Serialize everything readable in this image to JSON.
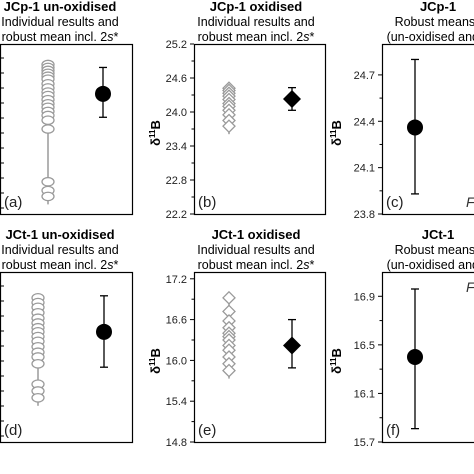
{
  "chart_data": [
    {
      "type": "scatter",
      "panel_label": "(a)",
      "title": "JCp-1 un-oxidised",
      "subtitle_lines": [
        "Individual results and",
        "robust mean incl. 2s*"
      ],
      "ylabel": "",
      "yticks": [],
      "ylim": [
        22.4,
        25.3
      ],
      "individual_results": [
        24.95,
        24.9,
        24.85,
        24.8,
        24.75,
        24.7,
        24.62,
        24.55,
        24.48,
        24.42,
        24.35,
        24.28,
        24.22,
        24.15,
        24.08,
        24.0,
        23.85,
        22.95,
        22.8,
        22.7
      ],
      "individual_marker": "open-circle",
      "robust_mean": {
        "value": 24.45,
        "err_low": 24.05,
        "err_high": 24.9,
        "marker": "filled-circle"
      }
    },
    {
      "type": "scatter",
      "panel_label": "(b)",
      "title": "JCp-1 oxidised",
      "subtitle_lines": [
        "Individual results and",
        "robust mean incl. 2s*"
      ],
      "ylabel": "δ11B",
      "yticks": [
        "22.2",
        "22.8",
        "23.4",
        "24.0",
        "24.6",
        "25.2"
      ],
      "ylim": [
        22.2,
        25.2
      ],
      "individual_results": [
        24.42,
        24.38,
        24.33,
        24.28,
        24.22,
        24.15,
        24.1,
        24.03,
        23.95,
        23.85,
        23.75
      ],
      "individual_marker": "open-diamond",
      "robust_mean": {
        "value": 24.23,
        "err_low": 24.03,
        "err_high": 24.43,
        "marker": "filled-diamond"
      }
    },
    {
      "type": "scatter",
      "panel_label": "(c)",
      "title": "JCp-1",
      "subtitle_lines": [
        "Robust means i",
        "(un-oxidised and o"
      ],
      "ylabel": "δ11B",
      "yticks": [
        "23.8",
        "24.1",
        "24.4",
        "24.7"
      ],
      "ylim": [
        23.8,
        24.9
      ],
      "corner_label": "F",
      "robust_mean": {
        "value": 24.36,
        "err_low": 23.93,
        "err_high": 24.8,
        "marker": "filled-circle"
      }
    },
    {
      "type": "scatter",
      "panel_label": "(d)",
      "title": "JCt-1 un-oxidised",
      "subtitle_lines": [
        "Individual results and",
        "robust mean incl. 2s*"
      ],
      "ylabel": "",
      "yticks": [],
      "ylim": [
        14.8,
        17.3
      ],
      "individual_results": [
        16.92,
        16.85,
        16.78,
        16.7,
        16.62,
        16.55,
        16.48,
        16.42,
        16.35,
        16.28,
        16.2,
        16.12,
        16.05,
        15.95,
        15.65,
        15.55,
        15.45
      ],
      "individual_marker": "open-circle",
      "robust_mean": {
        "value": 16.42,
        "err_low": 15.9,
        "err_high": 16.95,
        "marker": "filled-circle"
      }
    },
    {
      "type": "scatter",
      "panel_label": "(e)",
      "title": "JCt-1 oxidised",
      "subtitle_lines": [
        "Individual results and",
        "robust mean incl. 2s*"
      ],
      "ylabel": "δ11B",
      "yticks": [
        "14.8",
        "15.4",
        "16.0",
        "16.6",
        "17.2"
      ],
      "ylim": [
        14.8,
        17.3
      ],
      "individual_results": [
        16.92,
        16.72,
        16.58,
        16.48,
        16.4,
        16.35,
        16.3,
        16.22,
        16.15,
        16.05,
        15.95,
        15.85
      ],
      "individual_marker": "open-diamond",
      "robust_mean": {
        "value": 16.22,
        "err_low": 15.89,
        "err_high": 16.6,
        "marker": "filled-diamond"
      }
    },
    {
      "type": "scatter",
      "panel_label": "(f)",
      "title": "JCt-1",
      "subtitle_lines": [
        "Robust means i",
        "(un-oxidised and o"
      ],
      "ylabel": "δ11B",
      "yticks": [
        "15.7",
        "16.1",
        "16.5",
        "16.9"
      ],
      "ylim": [
        15.7,
        17.1
      ],
      "corner_label": "F",
      "robust_mean": {
        "value": 16.4,
        "err_low": 15.81,
        "err_high": 16.96,
        "marker": "filled-circle"
      }
    }
  ]
}
